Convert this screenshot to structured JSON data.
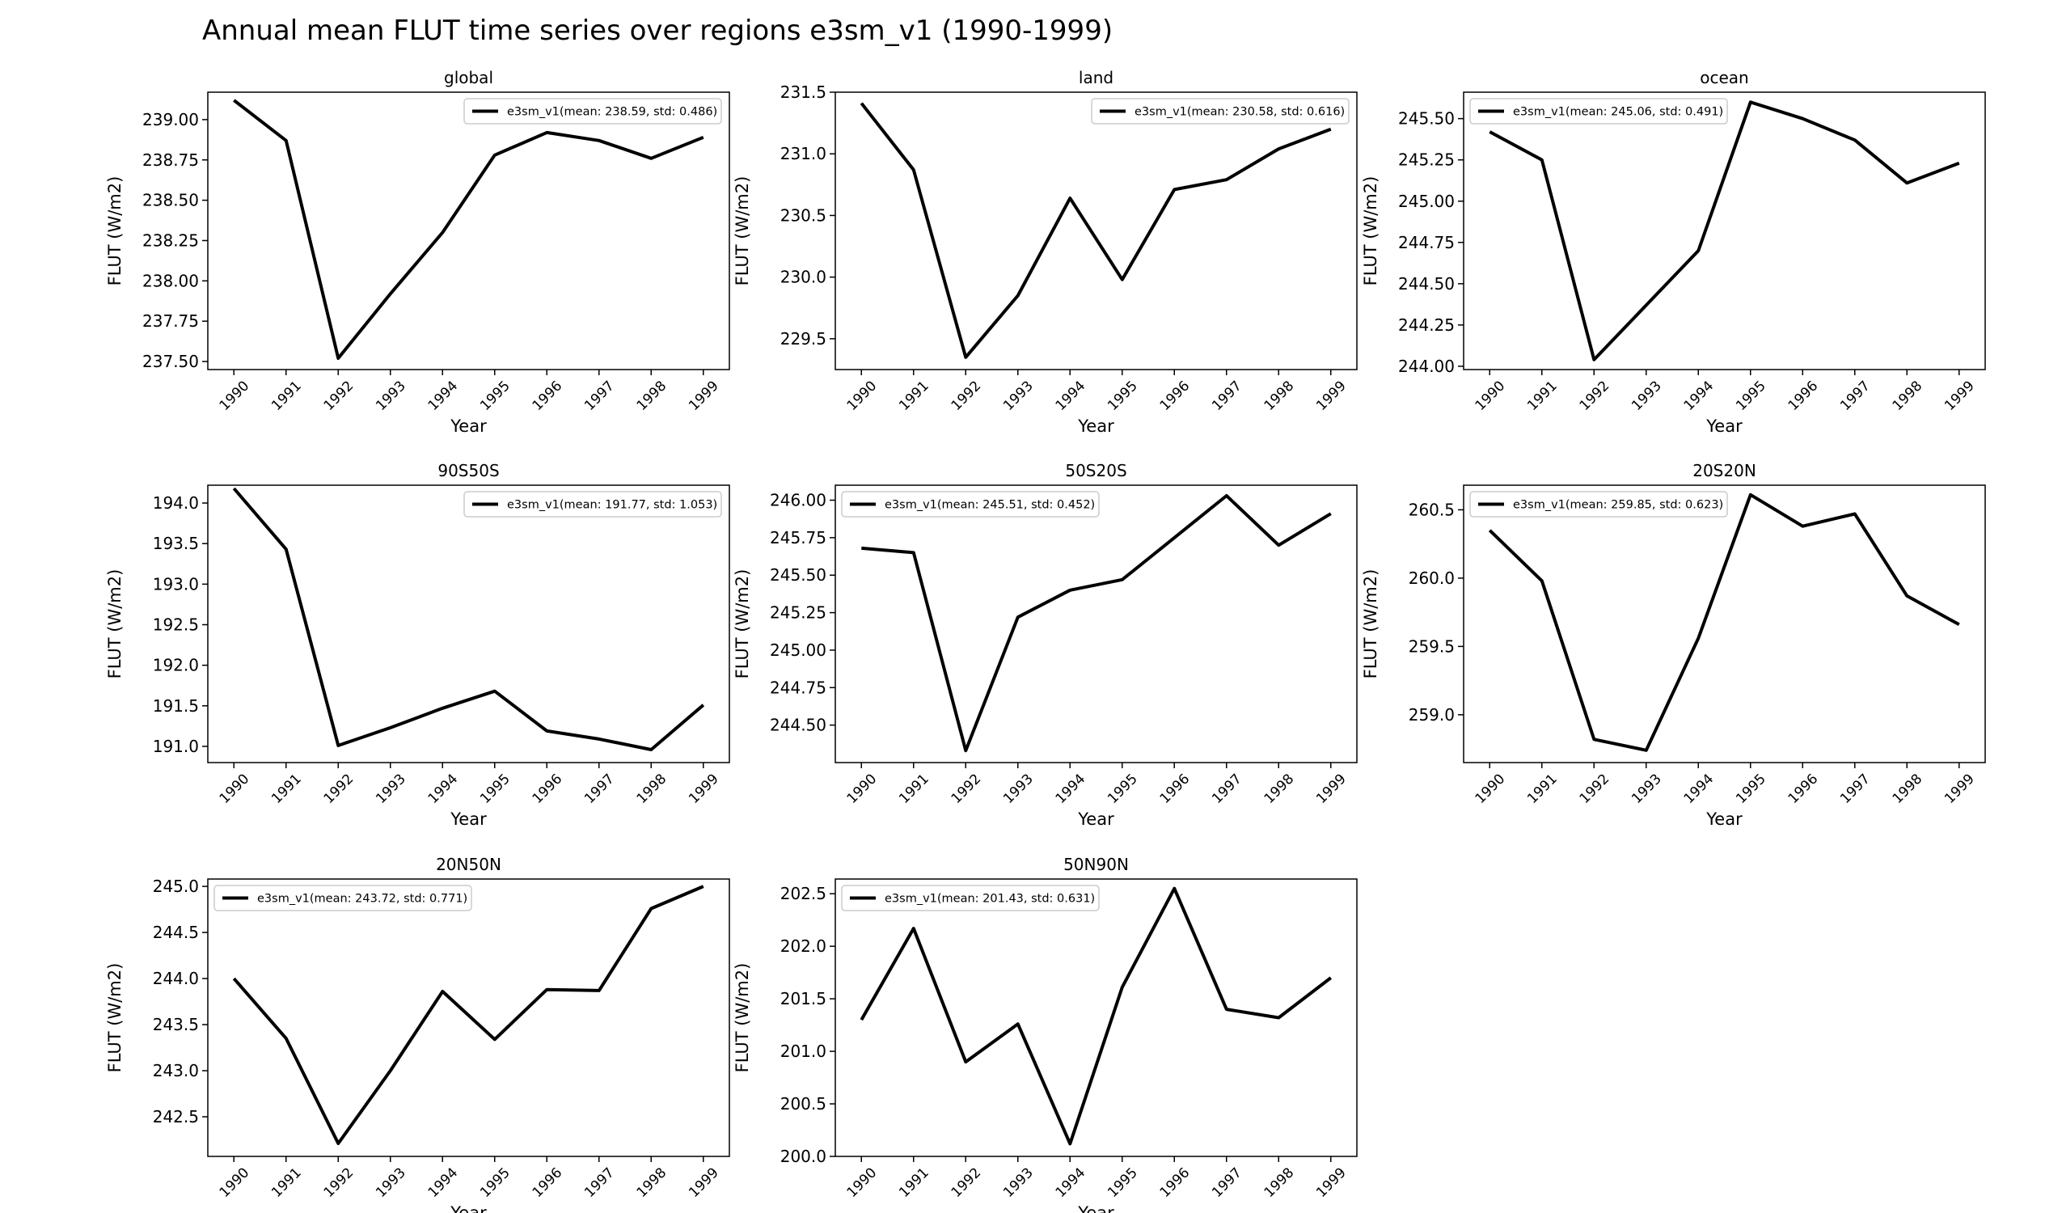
{
  "figure_title": "Annual mean FLUT time series over regions e3sm_v1 (1990-1999)",
  "chart_data": [
    {
      "type": "line",
      "title": "global",
      "xlabel": "Year",
      "ylabel": "FLUT (W/m2)",
      "x": [
        "1990",
        "1991",
        "1992",
        "1993",
        "1994",
        "1995",
        "1996",
        "1997",
        "1998",
        "1999"
      ],
      "ylim": [
        237.45,
        239.17
      ],
      "yticks": [
        "237.50",
        "237.75",
        "238.00",
        "238.25",
        "238.50",
        "238.75",
        "239.00"
      ],
      "legend": "upper right",
      "grid": false,
      "series": [
        {
          "name": "e3sm_v1(mean: 238.59, std: 0.486)",
          "color": "#000000",
          "values": [
            239.12,
            238.87,
            237.52,
            237.92,
            238.3,
            238.78,
            238.92,
            238.87,
            238.76,
            238.89
          ]
        }
      ]
    },
    {
      "type": "line",
      "title": "land",
      "xlabel": "Year",
      "ylabel": "FLUT (W/m2)",
      "x": [
        "1990",
        "1991",
        "1992",
        "1993",
        "1994",
        "1995",
        "1996",
        "1997",
        "1998",
        "1999"
      ],
      "ylim": [
        229.25,
        231.5
      ],
      "yticks": [
        "229.5",
        "230.0",
        "230.5",
        "231.0",
        "231.5"
      ],
      "legend": "upper right",
      "grid": false,
      "series": [
        {
          "name": "e3sm_v1(mean: 230.58, std: 0.616)",
          "color": "#000000",
          "values": [
            231.41,
            230.87,
            229.35,
            229.85,
            230.64,
            229.98,
            230.71,
            230.79,
            231.04,
            231.2
          ]
        }
      ]
    },
    {
      "type": "line",
      "title": "ocean",
      "xlabel": "Year",
      "ylabel": "FLUT (W/m2)",
      "x": [
        "1990",
        "1991",
        "1992",
        "1993",
        "1994",
        "1995",
        "1996",
        "1997",
        "1998",
        "1999"
      ],
      "ylim": [
        243.98,
        245.66
      ],
      "yticks": [
        "244.00",
        "244.25",
        "244.50",
        "244.75",
        "245.00",
        "245.25",
        "245.50"
      ],
      "legend": "upper left",
      "grid": false,
      "series": [
        {
          "name": "e3sm_v1(mean: 245.06, std: 0.491)",
          "color": "#000000",
          "values": [
            245.42,
            245.25,
            244.04,
            244.37,
            244.7,
            245.6,
            245.5,
            245.37,
            245.11,
            245.23
          ]
        }
      ]
    },
    {
      "type": "line",
      "title": "90S50S",
      "xlabel": "Year",
      "ylabel": "FLUT (W/m2)",
      "x": [
        "1990",
        "1991",
        "1992",
        "1993",
        "1994",
        "1995",
        "1996",
        "1997",
        "1998",
        "1999"
      ],
      "ylim": [
        190.8,
        194.22
      ],
      "yticks": [
        "191.0",
        "191.5",
        "192.0",
        "192.5",
        "193.0",
        "193.5",
        "194.0"
      ],
      "legend": "upper right",
      "grid": false,
      "series": [
        {
          "name": "e3sm_v1(mean: 191.77, std: 1.053)",
          "color": "#000000",
          "values": [
            194.18,
            193.43,
            191.01,
            191.23,
            191.47,
            191.68,
            191.19,
            191.09,
            190.96,
            191.51
          ]
        }
      ]
    },
    {
      "type": "line",
      "title": "50S20S",
      "xlabel": "Year",
      "ylabel": "FLUT (W/m2)",
      "x": [
        "1990",
        "1991",
        "1992",
        "1993",
        "1994",
        "1995",
        "1996",
        "1997",
        "1998",
        "1999"
      ],
      "ylim": [
        244.25,
        246.1
      ],
      "yticks": [
        "244.50",
        "244.75",
        "245.00",
        "245.25",
        "245.50",
        "245.75",
        "246.00"
      ],
      "legend": "upper left",
      "grid": false,
      "series": [
        {
          "name": "e3sm_v1(mean: 245.51, std: 0.452)",
          "color": "#000000",
          "values": [
            245.68,
            245.65,
            244.33,
            245.22,
            245.4,
            245.47,
            245.75,
            246.03,
            245.7,
            245.91
          ]
        }
      ]
    },
    {
      "type": "line",
      "title": "20S20N",
      "xlabel": "Year",
      "ylabel": "FLUT (W/m2)",
      "x": [
        "1990",
        "1991",
        "1992",
        "1993",
        "1994",
        "1995",
        "1996",
        "1997",
        "1998",
        "1999"
      ],
      "ylim": [
        258.65,
        260.68
      ],
      "yticks": [
        "259.0",
        "259.5",
        "260.0",
        "260.5"
      ],
      "legend": "upper left",
      "grid": false,
      "series": [
        {
          "name": "e3sm_v1(mean: 259.85, std: 0.623)",
          "color": "#000000",
          "values": [
            260.35,
            259.98,
            258.82,
            258.74,
            259.56,
            260.61,
            260.38,
            260.47,
            259.87,
            259.66
          ]
        }
      ]
    },
    {
      "type": "line",
      "title": "20N50N",
      "xlabel": "Year",
      "ylabel": "FLUT (W/m2)",
      "x": [
        "1990",
        "1991",
        "1992",
        "1993",
        "1994",
        "1995",
        "1996",
        "1997",
        "1998",
        "1999"
      ],
      "ylim": [
        242.07,
        245.08
      ],
      "yticks": [
        "242.5",
        "243.0",
        "243.5",
        "244.0",
        "244.5",
        "245.0"
      ],
      "legend": "upper left",
      "grid": false,
      "series": [
        {
          "name": "e3sm_v1(mean: 243.72, std: 0.771)",
          "color": "#000000",
          "values": [
            244.0,
            243.35,
            242.21,
            243.0,
            243.86,
            243.34,
            243.88,
            243.87,
            244.76,
            245.0
          ]
        }
      ]
    },
    {
      "type": "line",
      "title": "50N90N",
      "xlabel": "Year",
      "ylabel": "FLUT (W/m2)",
      "x": [
        "1990",
        "1991",
        "1992",
        "1993",
        "1994",
        "1995",
        "1996",
        "1997",
        "1998",
        "1999"
      ],
      "ylim": [
        200.0,
        202.64
      ],
      "yticks": [
        "200.0",
        "200.5",
        "201.0",
        "201.5",
        "202.0",
        "202.5"
      ],
      "legend": "upper left",
      "grid": false,
      "series": [
        {
          "name": "e3sm_v1(mean: 201.43, std: 0.631)",
          "color": "#000000",
          "values": [
            201.3,
            202.17,
            200.9,
            201.26,
            200.12,
            201.61,
            202.55,
            201.4,
            201.32,
            201.7
          ]
        }
      ]
    }
  ]
}
